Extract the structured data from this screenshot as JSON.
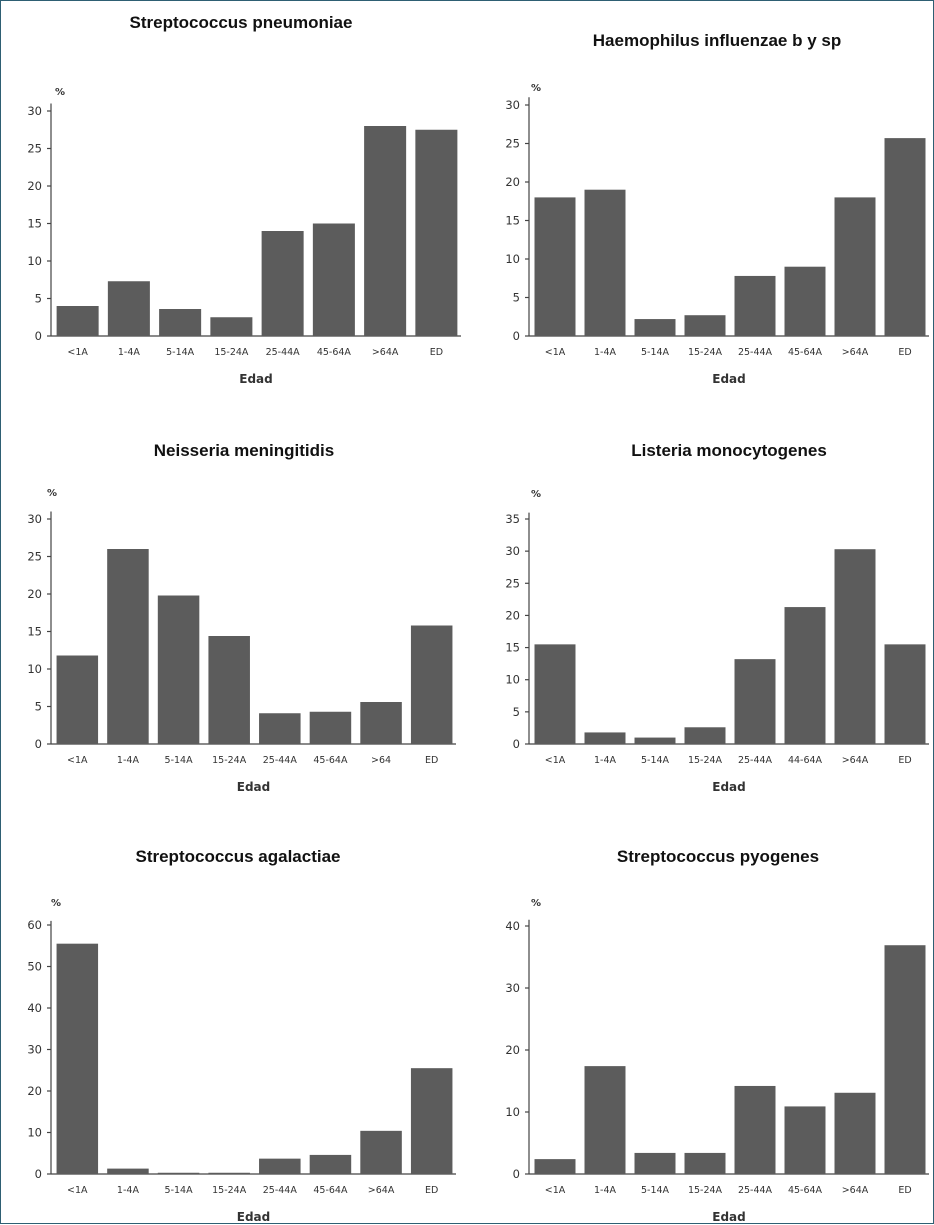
{
  "chart_data": [
    {
      "type": "bar",
      "title": "Streptococcus pneumoniae",
      "ylabel": "%",
      "xlabel": "Edad",
      "categories": [
        "<1A",
        "1-4A",
        "5-14A",
        "15-24A",
        "25-44A",
        "45-64A",
        ">64A",
        "ED"
      ],
      "values": [
        4,
        7.3,
        3.6,
        2.5,
        14,
        15,
        28,
        27.5
      ],
      "yticks": [
        0,
        5,
        10,
        15,
        20,
        25,
        30
      ],
      "ylim": [
        0,
        31
      ],
      "color": "#5c5c5c"
    },
    {
      "type": "bar",
      "title": "Haemophilus influenzae b y sp",
      "ylabel": "%",
      "xlabel": "Edad",
      "categories": [
        "<1A",
        "1-4A",
        "5-14A",
        "15-24A",
        "25-44A",
        "45-64A",
        ">64A",
        "ED"
      ],
      "values": [
        18,
        19,
        2.2,
        2.7,
        7.8,
        9,
        18,
        25.7
      ],
      "yticks": [
        0,
        5,
        10,
        15,
        20,
        25,
        30
      ],
      "ylim": [
        0,
        31
      ],
      "color": "#5c5c5c"
    },
    {
      "type": "bar",
      "title": "Neisseria meningitidis",
      "ylabel": "%",
      "xlabel": "Edad",
      "categories": [
        "<1A",
        "1-4A",
        "5-14A",
        "15-24A",
        "25-44A",
        "45-64A",
        ">64",
        "ED"
      ],
      "values": [
        11.8,
        26,
        19.8,
        14.4,
        4.1,
        4.3,
        5.6,
        15.8
      ],
      "yticks": [
        0,
        5,
        10,
        15,
        20,
        25,
        30
      ],
      "ylim": [
        0,
        31
      ],
      "color": "#5c5c5c"
    },
    {
      "type": "bar",
      "title": "Listeria monocytogenes",
      "ylabel": "%",
      "xlabel": "Edad",
      "categories": [
        "<1A",
        "1-4A",
        "5-14A",
        "15-24A",
        "25-44A",
        "44-64A",
        ">64A",
        "ED"
      ],
      "values": [
        15.5,
        1.8,
        1,
        2.6,
        13.2,
        21.3,
        30.3,
        15.5
      ],
      "yticks": [
        0,
        5,
        10,
        15,
        20,
        25,
        30,
        35
      ],
      "ylim": [
        0,
        36
      ],
      "color": "#5c5c5c"
    },
    {
      "type": "bar",
      "title": "Streptococcus agalactiae",
      "ylabel": "%",
      "xlabel": "Edad",
      "categories": [
        "<1A",
        "1-4A",
        "5-14A",
        "15-24A",
        "25-44A",
        "45-64A",
        ">64A",
        "ED"
      ],
      "values": [
        55.5,
        1.3,
        0.3,
        0.3,
        3.7,
        4.6,
        10.4,
        25.5
      ],
      "yticks": [
        0,
        10,
        20,
        30,
        40,
        50,
        60
      ],
      "ylim": [
        0,
        61
      ],
      "color": "#5c5c5c"
    },
    {
      "type": "bar",
      "title": "Streptococcus pyogenes",
      "ylabel": "%",
      "xlabel": "Edad",
      "categories": [
        "<1A",
        "1-4A",
        "5-14A",
        "15-24A",
        "25-44A",
        "45-64A",
        ">64A",
        "ED"
      ],
      "values": [
        2.4,
        17.4,
        3.4,
        3.4,
        14.2,
        10.9,
        13.1,
        36.9
      ],
      "yticks": [
        0,
        10,
        20,
        30,
        40
      ],
      "ylim": [
        0,
        41
      ],
      "color": "#5c5c5c"
    }
  ]
}
